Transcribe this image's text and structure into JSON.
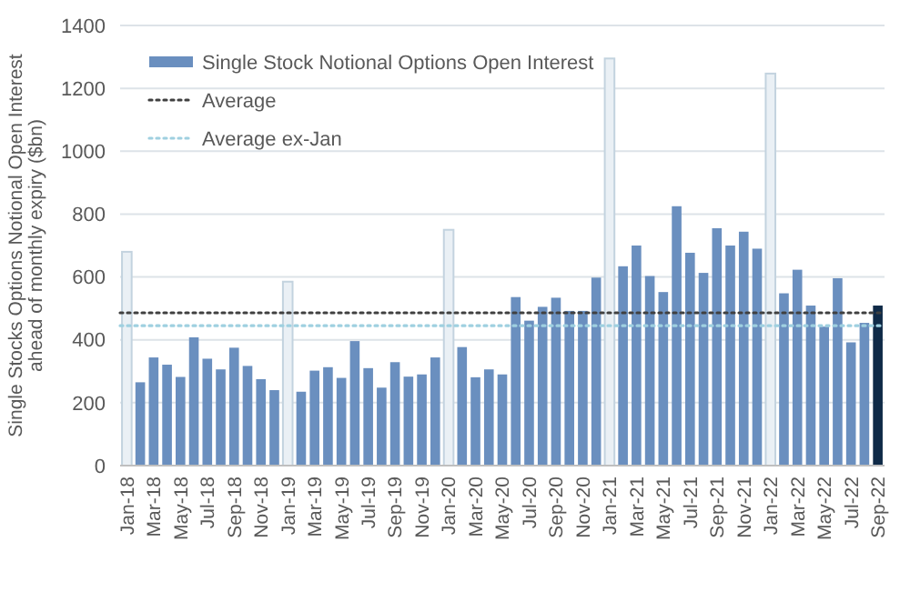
{
  "chart_data": {
    "type": "bar",
    "ylabel": "Single Stocks Options Notional Open Interest\nahead of monthly expiry ($bn)",
    "categories": [
      "Jan-18",
      null,
      "Mar-18",
      null,
      "May-18",
      null,
      "Jul-18",
      null,
      "Sep-18",
      null,
      "Nov-18",
      null,
      "Jan-19",
      null,
      "Mar-19",
      null,
      "May-19",
      null,
      "Jul-19",
      null,
      "Sep-19",
      null,
      "Nov-19",
      null,
      "Jan-20",
      null,
      "Mar-20",
      null,
      "May-20",
      null,
      "Jul-20",
      null,
      "Sep-20",
      null,
      "Nov-20",
      null,
      "Jan-21",
      null,
      "Mar-21",
      null,
      "May-21",
      null,
      "Jul-21",
      null,
      "Sep-21",
      null,
      "Nov-21",
      null,
      "Jan-22",
      null,
      "Mar-22",
      null,
      "May-22",
      null,
      "Jul-22",
      null,
      "Sep-22"
    ],
    "series": [
      {
        "name": "Single Stock Notional Options Open Interest",
        "color": "#6a8fbf",
        "values": [
          680,
          265,
          344,
          321,
          282,
          408,
          340,
          306,
          375,
          317,
          275,
          240,
          585,
          235,
          302,
          313,
          279,
          396,
          310,
          248,
          329,
          283,
          290,
          344,
          750,
          377,
          281,
          306,
          290,
          536,
          461,
          505,
          534,
          492,
          492,
          598,
          1295,
          634,
          700,
          603,
          552,
          825,
          677,
          613,
          755,
          700,
          744,
          690,
          1247,
          548,
          623,
          509,
          442,
          596,
          392,
          454,
          509
        ],
        "colors": [
          "#eaf0f5",
          "#6a8fbf",
          "#6a8fbf",
          "#6a8fbf",
          "#6a8fbf",
          "#6a8fbf",
          "#6a8fbf",
          "#6a8fbf",
          "#6a8fbf",
          "#6a8fbf",
          "#6a8fbf",
          "#6a8fbf",
          "#eaf0f5",
          "#6a8fbf",
          "#6a8fbf",
          "#6a8fbf",
          "#6a8fbf",
          "#6a8fbf",
          "#6a8fbf",
          "#6a8fbf",
          "#6a8fbf",
          "#6a8fbf",
          "#6a8fbf",
          "#6a8fbf",
          "#eaf0f5",
          "#6a8fbf",
          "#6a8fbf",
          "#6a8fbf",
          "#6a8fbf",
          "#6a8fbf",
          "#6a8fbf",
          "#6a8fbf",
          "#6a8fbf",
          "#6a8fbf",
          "#6a8fbf",
          "#6a8fbf",
          "#eaf0f5",
          "#6a8fbf",
          "#6a8fbf",
          "#6a8fbf",
          "#6a8fbf",
          "#6a8fbf",
          "#6a8fbf",
          "#6a8fbf",
          "#6a8fbf",
          "#6a8fbf",
          "#6a8fbf",
          "#6a8fbf",
          "#eaf0f5",
          "#6a8fbf",
          "#6a8fbf",
          "#6a8fbf",
          "#6a8fbf",
          "#6a8fbf",
          "#6a8fbf",
          "#6a8fbf",
          "#0f2a47"
        ]
      }
    ],
    "ylim": [
      0,
      1400
    ],
    "yticks": [
      0,
      200,
      400,
      600,
      800,
      1000,
      1200,
      1400
    ],
    "grid": "y",
    "legend": "top left",
    "ref_lines": [
      {
        "axis": "y",
        "value": 486,
        "label": "Average",
        "color": "#404040",
        "line_style": "dotted"
      },
      {
        "axis": "y",
        "value": 445,
        "label": "Average ex-Jan",
        "color": "#9fd0e0",
        "line_style": "dotted"
      }
    ]
  }
}
